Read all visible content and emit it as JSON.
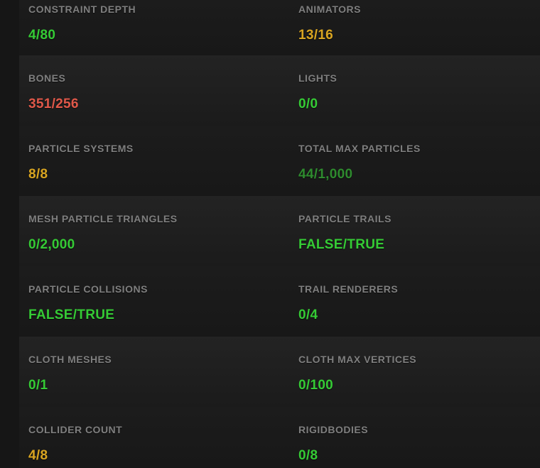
{
  "colors": {
    "green": "#35cb35",
    "dark_green": "#2e8b2e",
    "gold": "#d9a521",
    "red": "#e05849",
    "label_gray": "#7f7f7f"
  },
  "rows": [
    {
      "cells": [
        {
          "label": "CONSTRAINT DEPTH",
          "value": "4/80",
          "color": "green"
        },
        {
          "label": "ANIMATORS",
          "value": "13/16",
          "color": "gold"
        }
      ]
    },
    {
      "cells": [
        {
          "label": "BONES",
          "value": "351/256",
          "color": "red"
        },
        {
          "label": "LIGHTS",
          "value": "0/0",
          "color": "green"
        }
      ]
    },
    {
      "cells": [
        {
          "label": "PARTICLE SYSTEMS",
          "value": "8/8",
          "color": "gold"
        },
        {
          "label": "TOTAL MAX PARTICLES",
          "value": "44/1,000",
          "color": "dark_green"
        }
      ]
    },
    {
      "cells": [
        {
          "label": "MESH PARTICLE TRIANGLES",
          "value": "0/2,000",
          "color": "green"
        },
        {
          "label": "PARTICLE TRAILS",
          "value": "FALSE/TRUE",
          "color": "green"
        }
      ]
    },
    {
      "cells": [
        {
          "label": "PARTICLE COLLISIONS",
          "value": "FALSE/TRUE",
          "color": "green"
        },
        {
          "label": "TRAIL RENDERERS",
          "value": "0/4",
          "color": "green"
        }
      ]
    },
    {
      "cells": [
        {
          "label": "CLOTH MESHES",
          "value": "0/1",
          "color": "green"
        },
        {
          "label": "CLOTH MAX VERTICES",
          "value": "0/100",
          "color": "green"
        }
      ]
    },
    {
      "cells": [
        {
          "label": "COLLIDER COUNT",
          "value": "4/8",
          "color": "gold"
        },
        {
          "label": "RIGIDBODIES",
          "value": "0/8",
          "color": "green"
        }
      ]
    }
  ]
}
